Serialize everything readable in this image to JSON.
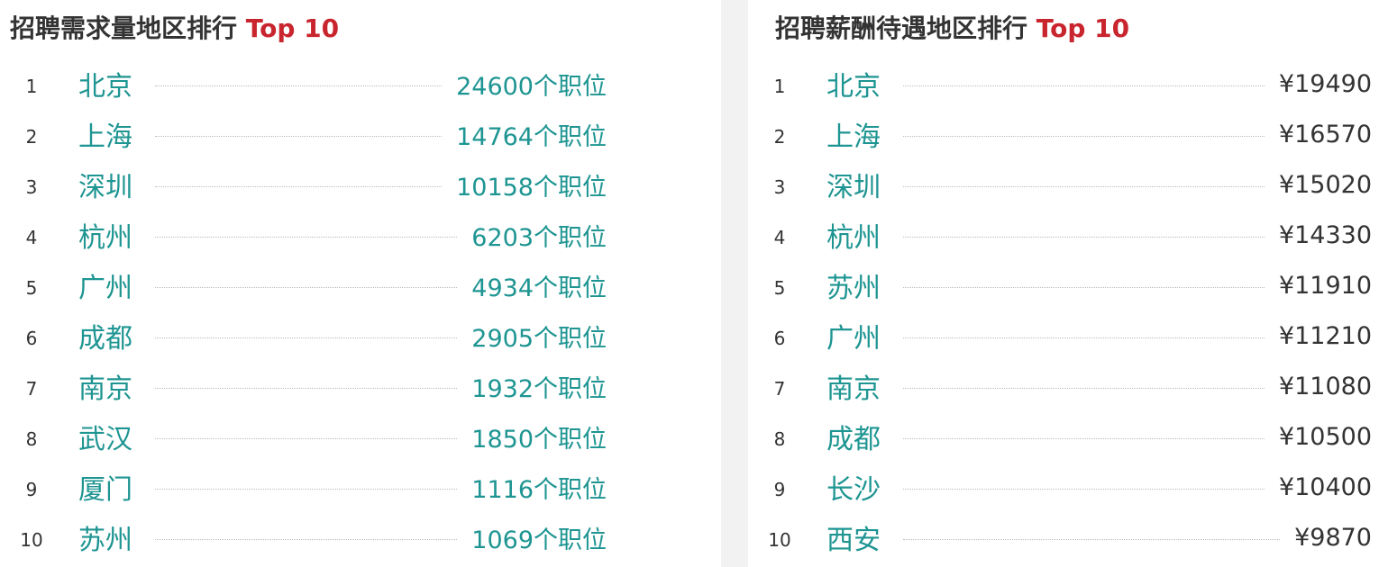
{
  "demand": {
    "title": "招聘需求量地区排行",
    "title_accent": "Top 10",
    "rows": [
      {
        "rank": "1",
        "city": "北京",
        "value": "24600个职位"
      },
      {
        "rank": "2",
        "city": "上海",
        "value": "14764个职位"
      },
      {
        "rank": "3",
        "city": "深圳",
        "value": "10158个职位"
      },
      {
        "rank": "4",
        "city": "杭州",
        "value": "6203个职位"
      },
      {
        "rank": "5",
        "city": "广州",
        "value": "4934个职位"
      },
      {
        "rank": "6",
        "city": "成都",
        "value": "2905个职位"
      },
      {
        "rank": "7",
        "city": "南京",
        "value": "1932个职位"
      },
      {
        "rank": "8",
        "city": "武汉",
        "value": "1850个职位"
      },
      {
        "rank": "9",
        "city": "厦门",
        "value": "1116个职位"
      },
      {
        "rank": "10",
        "city": "苏州",
        "value": "1069个职位"
      }
    ]
  },
  "salary": {
    "title": "招聘薪酬待遇地区排行",
    "title_accent": "Top 10",
    "rows": [
      {
        "rank": "1",
        "city": "北京",
        "value": "¥19490"
      },
      {
        "rank": "2",
        "city": "上海",
        "value": "¥16570"
      },
      {
        "rank": "3",
        "city": "深圳",
        "value": "¥15020"
      },
      {
        "rank": "4",
        "city": "杭州",
        "value": "¥14330"
      },
      {
        "rank": "5",
        "city": "苏州",
        "value": "¥11910"
      },
      {
        "rank": "6",
        "city": "广州",
        "value": "¥11210"
      },
      {
        "rank": "7",
        "city": "南京",
        "value": "¥11080"
      },
      {
        "rank": "8",
        "city": "成都",
        "value": "¥10500"
      },
      {
        "rank": "9",
        "city": "长沙",
        "value": "¥10400"
      },
      {
        "rank": "10",
        "city": "西安",
        "value": "¥9870"
      }
    ]
  },
  "colors": {
    "accent": "#c9252e",
    "city": "#1e9592",
    "text": "#333333"
  }
}
